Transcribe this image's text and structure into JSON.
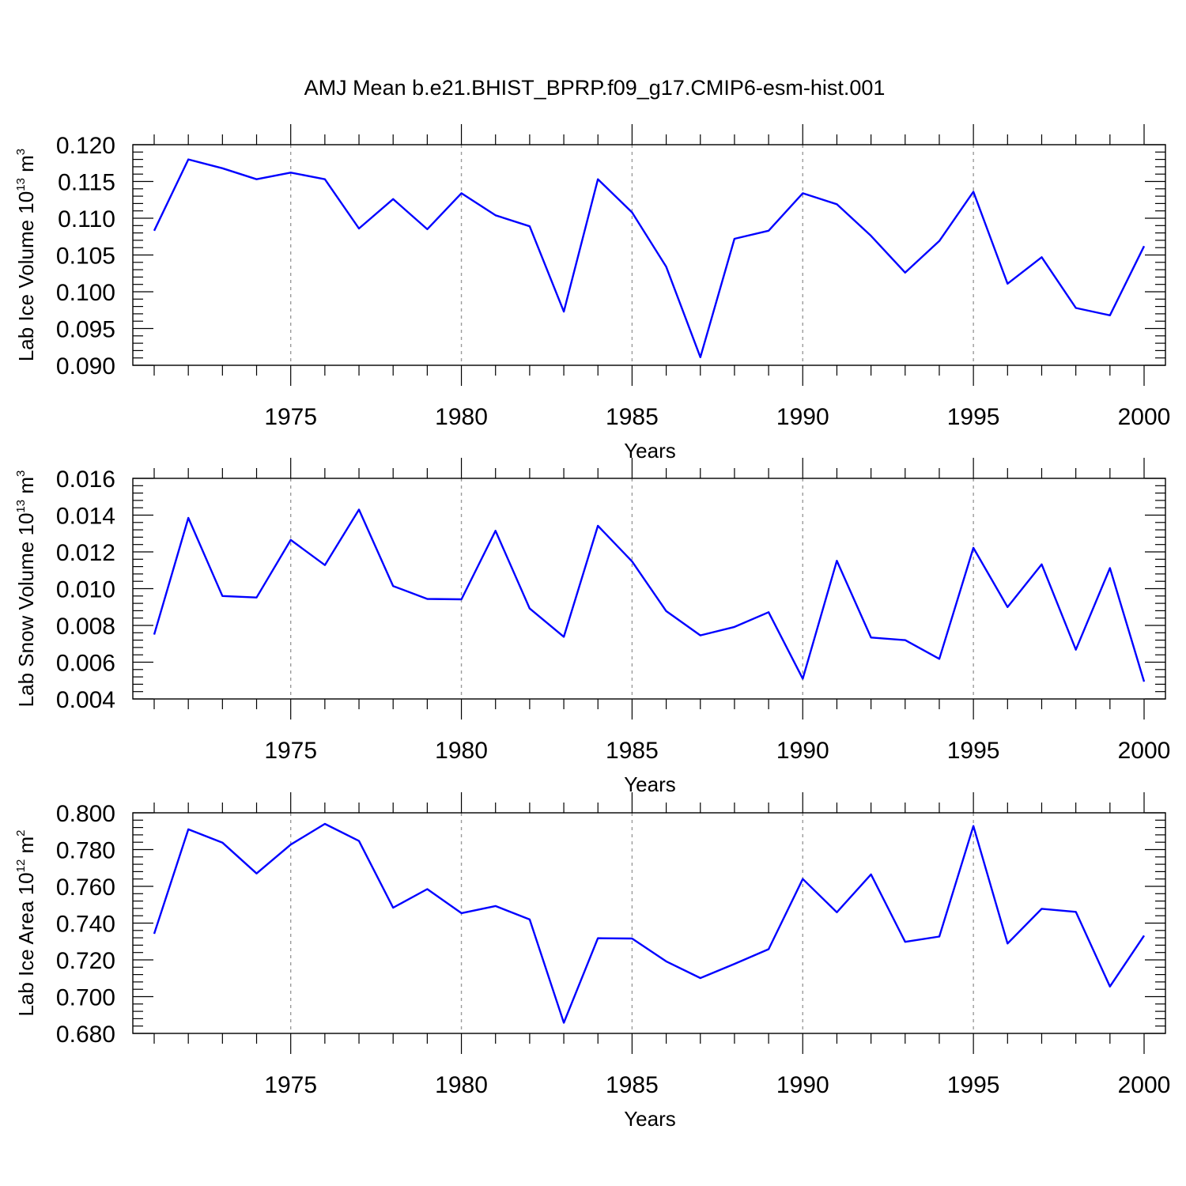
{
  "figure": {
    "title": "AMJ Mean b.e21.BHIST_BPRP.f09_g17.CMIP6-esm-hist.001",
    "line_color": "#0000ff",
    "grid_color": "#9a9a9a"
  },
  "chart_data": [
    {
      "type": "line",
      "title": "",
      "xlabel": "Years",
      "ylabel": {
        "main": "Lab Ice Volume 10",
        "exp": "13",
        "unit": " m",
        "unit_exp": "3"
      },
      "xlim": [
        1971,
        2000
      ],
      "ylim": [
        0.09,
        0.12
      ],
      "x_ticks": [
        1975,
        1980,
        1985,
        1990,
        1995,
        2000
      ],
      "y_ticks": [
        0.09,
        0.095,
        0.1,
        0.105,
        0.11,
        0.115,
        0.12
      ],
      "y_tick_labels": [
        "0.090",
        "0.095",
        "0.100",
        "0.105",
        "0.110",
        "0.115",
        "0.120"
      ],
      "y_minor_step": 0.001,
      "grid": "x-dashed",
      "x": [
        1971,
        1972,
        1973,
        1974,
        1975,
        1976,
        1977,
        1978,
        1979,
        1980,
        1981,
        1982,
        1983,
        1984,
        1985,
        1986,
        1987,
        1988,
        1989,
        1990,
        1991,
        1992,
        1993,
        1994,
        1995,
        1996,
        1997,
        1998,
        1999,
        2000
      ],
      "values": [
        0.1083,
        0.118,
        0.1168,
        0.1153,
        0.1162,
        0.1153,
        0.1086,
        0.1126,
        0.1085,
        0.1134,
        0.1104,
        0.1089,
        0.0973,
        0.1153,
        0.1108,
        0.1034,
        0.0911,
        0.1072,
        0.1083,
        0.1134,
        0.1119,
        0.1076,
        0.1026,
        0.1069,
        0.1136,
        0.1011,
        0.1047,
        0.0978,
        0.0968,
        0.1062
      ]
    },
    {
      "type": "line",
      "title": "",
      "xlabel": "Years",
      "ylabel": {
        "main": "Lab Snow Volume 10",
        "exp": "13",
        "unit": " m",
        "unit_exp": "3"
      },
      "xlim": [
        1971,
        2000
      ],
      "ylim": [
        0.004,
        0.016
      ],
      "x_ticks": [
        1975,
        1980,
        1985,
        1990,
        1995,
        2000
      ],
      "y_ticks": [
        0.004,
        0.006,
        0.008,
        0.01,
        0.012,
        0.014,
        0.016
      ],
      "y_tick_labels": [
        "0.004",
        "0.006",
        "0.008",
        "0.010",
        "0.012",
        "0.014",
        "0.016"
      ],
      "y_minor_step": 0.0004,
      "grid": "x-dashed",
      "x": [
        1971,
        1972,
        1973,
        1974,
        1975,
        1976,
        1977,
        1978,
        1979,
        1980,
        1981,
        1982,
        1983,
        1984,
        1985,
        1986,
        1987,
        1988,
        1989,
        1990,
        1991,
        1992,
        1993,
        1994,
        1995,
        1996,
        1997,
        1998,
        1999,
        2000
      ],
      "values": [
        0.0075,
        0.01385,
        0.0096,
        0.00952,
        0.01265,
        0.01128,
        0.0143,
        0.01014,
        0.00944,
        0.00942,
        0.01315,
        0.00892,
        0.00738,
        0.01342,
        0.01148,
        0.00878,
        0.00746,
        0.00792,
        0.00872,
        0.0051,
        0.01152,
        0.00734,
        0.0072,
        0.00618,
        0.01222,
        0.009,
        0.01132,
        0.00668,
        0.01112,
        0.00494
      ]
    },
    {
      "type": "line",
      "title": "",
      "xlabel": "Years",
      "ylabel": {
        "main": "Lab Ice Area 10",
        "exp": "12",
        "unit": " m",
        "unit_exp": "2"
      },
      "xlim": [
        1971,
        2000
      ],
      "ylim": [
        0.68,
        0.8
      ],
      "x_ticks": [
        1975,
        1980,
        1985,
        1990,
        1995,
        2000
      ],
      "y_ticks": [
        0.68,
        0.7,
        0.72,
        0.74,
        0.76,
        0.78,
        0.8
      ],
      "y_tick_labels": [
        "0.680",
        "0.700",
        "0.720",
        "0.740",
        "0.760",
        "0.780",
        "0.800"
      ],
      "y_minor_step": 0.004,
      "grid": "x-dashed",
      "x": [
        1971,
        1972,
        1973,
        1974,
        1975,
        1976,
        1977,
        1978,
        1979,
        1980,
        1981,
        1982,
        1983,
        1984,
        1985,
        1986,
        1987,
        1988,
        1989,
        1990,
        1991,
        1992,
        1993,
        1994,
        1995,
        1996,
        1997,
        1998,
        1999,
        2000
      ],
      "values": [
        0.7342,
        0.791,
        0.7838,
        0.767,
        0.7827,
        0.794,
        0.7847,
        0.7484,
        0.7585,
        0.7454,
        0.7493,
        0.742,
        0.6858,
        0.7318,
        0.7316,
        0.7192,
        0.7101,
        0.7178,
        0.7258,
        0.764,
        0.7459,
        0.7665,
        0.7298,
        0.7327,
        0.7928,
        0.7289,
        0.7478,
        0.7461,
        0.7055,
        0.7332
      ]
    }
  ]
}
